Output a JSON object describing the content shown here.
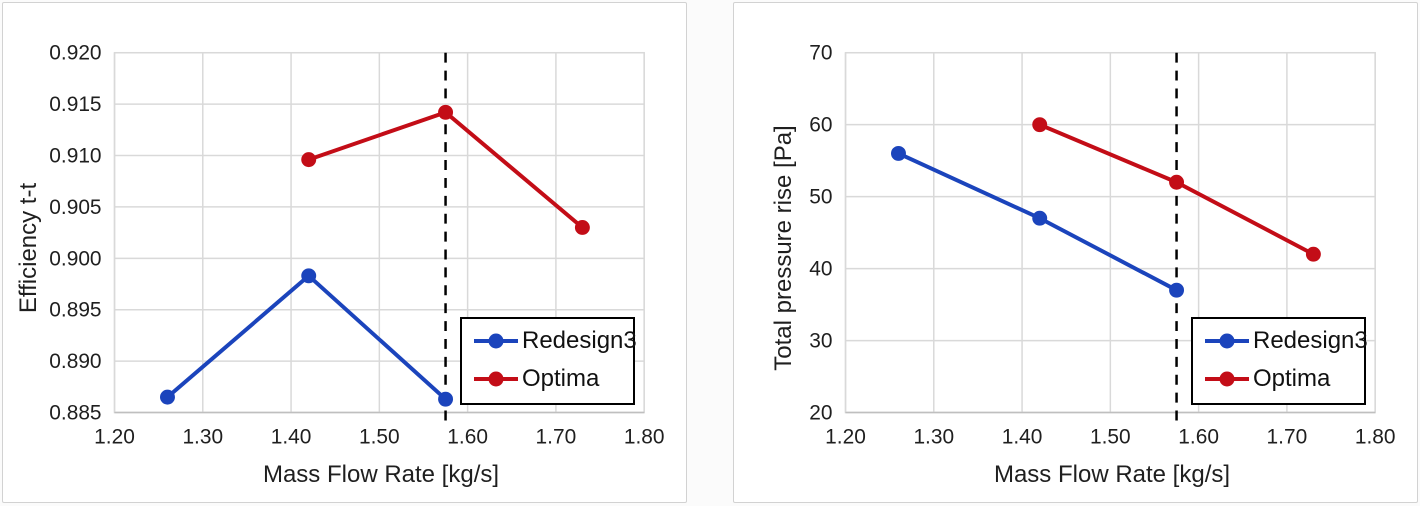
{
  "colors": {
    "series_blue": "#1B44BC",
    "series_red": "#C30D17",
    "gridline": "#d9d9d9",
    "axis_line": "#bfbfbf",
    "vline": "#000000",
    "text": "#1f1f1f"
  },
  "legend": {
    "entries": [
      "Redesign3",
      "Optima"
    ]
  },
  "chart_data": [
    {
      "type": "line",
      "title": "",
      "xlabel": "Mass Flow Rate [kg/s]",
      "ylabel": "Efficiency t-t",
      "xlim": [
        1.2,
        1.8
      ],
      "ylim": [
        0.885,
        0.92
      ],
      "xticks": [
        1.2,
        1.3,
        1.4,
        1.5,
        1.6,
        1.7,
        1.8
      ],
      "xtick_labels": [
        "1.20",
        "1.30",
        "1.40",
        "1.50",
        "1.60",
        "1.70",
        "1.80"
      ],
      "yticks": [
        0.885,
        0.89,
        0.895,
        0.9,
        0.905,
        0.91,
        0.915,
        0.92
      ],
      "ytick_labels": [
        "0.885",
        "0.890",
        "0.895",
        "0.900",
        "0.905",
        "0.910",
        "0.915",
        "0.920"
      ],
      "grid": true,
      "vline_x": 1.575,
      "legend_position": "inside-bottom-right",
      "series": [
        {
          "name": "Redesign3",
          "color": "#1B44BC",
          "x": [
            1.26,
            1.42,
            1.575
          ],
          "y": [
            0.8865,
            0.8983,
            0.8863
          ]
        },
        {
          "name": "Optima",
          "color": "#C30D17",
          "x": [
            1.42,
            1.575,
            1.73
          ],
          "y": [
            0.9096,
            0.9142,
            0.903
          ]
        }
      ]
    },
    {
      "type": "line",
      "title": "",
      "xlabel": "Mass Flow Rate [kg/s]",
      "ylabel": "Total pressure rise [Pa]",
      "xlim": [
        1.2,
        1.8
      ],
      "ylim": [
        20,
        70
      ],
      "xticks": [
        1.2,
        1.3,
        1.4,
        1.5,
        1.6,
        1.7,
        1.8
      ],
      "xtick_labels": [
        "1.20",
        "1.30",
        "1.40",
        "1.50",
        "1.60",
        "1.70",
        "1.80"
      ],
      "yticks": [
        20,
        30,
        40,
        50,
        60,
        70
      ],
      "ytick_labels": [
        "20",
        "30",
        "40",
        "50",
        "60",
        "70"
      ],
      "grid": true,
      "vline_x": 1.575,
      "legend_position": "inside-bottom-right",
      "series": [
        {
          "name": "Redesign3",
          "color": "#1B44BC",
          "x": [
            1.26,
            1.42,
            1.575
          ],
          "y": [
            56,
            47,
            37
          ]
        },
        {
          "name": "Optima",
          "color": "#C30D17",
          "x": [
            1.42,
            1.575,
            1.73
          ],
          "y": [
            60,
            52,
            42
          ]
        }
      ]
    }
  ]
}
